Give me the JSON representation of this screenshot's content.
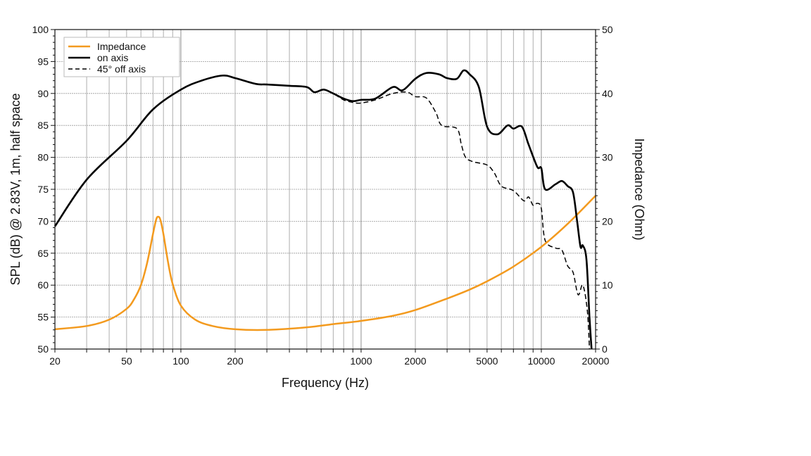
{
  "chart_data": {
    "type": "line",
    "xlabel": "Frequency (Hz)",
    "ylabel": "SPL (dB) @ 2.83V, 1m, half space",
    "y2label": "Impedance (Ohm)",
    "xscale": "log",
    "xlim": [
      20,
      20000
    ],
    "ylim": [
      50,
      100
    ],
    "y2lim": [
      0,
      50
    ],
    "grid": true,
    "legend_position": "top-left",
    "x_ticks": [
      20,
      50,
      100,
      200,
      1000,
      2000,
      5000,
      10000,
      20000
    ],
    "x_tick_labels": [
      "20",
      "50",
      "100",
      "200",
      "1000",
      "2000",
      "5000",
      "10000",
      "20000"
    ],
    "y_ticks": [
      "50",
      "55",
      "60",
      "65",
      "70",
      "75",
      "80",
      "85",
      "90",
      "95",
      "100"
    ],
    "y2_ticks": [
      "0",
      "10",
      "20",
      "30",
      "40",
      "50"
    ],
    "series": [
      {
        "name": "Impedance",
        "axis": "right",
        "color": "#f39a1e",
        "style": "solid",
        "x": [
          20,
          30,
          40,
          50,
          55,
          60,
          65,
          70,
          73,
          75,
          77,
          80,
          85,
          90,
          100,
          120,
          150,
          200,
          300,
          500,
          700,
          1000,
          1500,
          2000,
          3000,
          4000,
          5000,
          7000,
          10000,
          14000,
          20000
        ],
        "y": [
          3.1,
          3.6,
          4.6,
          6.3,
          7.8,
          10,
          13.5,
          18,
          20.3,
          20.7,
          20.2,
          18,
          13.5,
          10.2,
          6.8,
          4.6,
          3.6,
          3.1,
          3.0,
          3.4,
          3.9,
          4.4,
          5.2,
          6.1,
          7.9,
          9.3,
          10.6,
          12.9,
          16,
          19.6,
          24
        ]
      },
      {
        "name": "on axis",
        "axis": "left",
        "color": "#000000",
        "style": "solid",
        "x": [
          20,
          30,
          50,
          70,
          100,
          130,
          170,
          200,
          260,
          300,
          400,
          500,
          550,
          620,
          700,
          800,
          900,
          1000,
          1200,
          1500,
          1700,
          2000,
          2300,
          2700,
          3000,
          3400,
          3700,
          4000,
          4500,
          5000,
          5700,
          6500,
          7000,
          7800,
          8500,
          9500,
          10000,
          10500,
          12000,
          13000,
          14000,
          15000,
          15800,
          16500,
          17000,
          17800,
          18500,
          19000
        ],
        "y": [
          69.2,
          76.5,
          82.6,
          87.5,
          90.6,
          92.0,
          92.8,
          92.4,
          91.5,
          91.4,
          91.2,
          91.0,
          90.2,
          90.6,
          90.0,
          89.2,
          88.8,
          89.0,
          89.2,
          91.0,
          90.5,
          92.3,
          93.2,
          93.0,
          92.4,
          92.3,
          93.6,
          93.0,
          91.0,
          84.8,
          83.6,
          85.0,
          84.5,
          84.8,
          82.0,
          78.5,
          78.3,
          75.0,
          75.8,
          76.3,
          75.5,
          74.5,
          70.0,
          66.0,
          66.2,
          64.0,
          55.0,
          50.0
        ]
      },
      {
        "name": "45° off axis",
        "axis": "left",
        "color": "#000000",
        "style": "dashed",
        "x": [
          20,
          30,
          50,
          70,
          100,
          130,
          170,
          200,
          260,
          300,
          400,
          500,
          550,
          620,
          700,
          800,
          900,
          1000,
          1200,
          1500,
          1800,
          2000,
          2300,
          2600,
          2800,
          3400,
          3600,
          3800,
          4200,
          5000,
          5500,
          6000,
          7000,
          8000,
          8500,
          9000,
          9500,
          10000,
          10500,
          12000,
          13000,
          14000,
          15000,
          16000,
          17000,
          18000,
          18500
        ],
        "y": [
          69.2,
          76.5,
          82.6,
          87.5,
          90.6,
          92.0,
          92.8,
          92.4,
          91.5,
          91.4,
          91.2,
          91.0,
          90.2,
          90.6,
          90.0,
          89.0,
          88.6,
          88.5,
          89.0,
          90.0,
          90.2,
          89.5,
          89.3,
          87.0,
          85.0,
          84.5,
          82.0,
          80.0,
          79.3,
          78.8,
          77.5,
          75.5,
          74.8,
          73.2,
          73.8,
          72.5,
          72.8,
          72.0,
          67.0,
          65.8,
          65.5,
          63.0,
          62.0,
          58.5,
          60.0,
          56.0,
          50.0
        ]
      }
    ]
  }
}
